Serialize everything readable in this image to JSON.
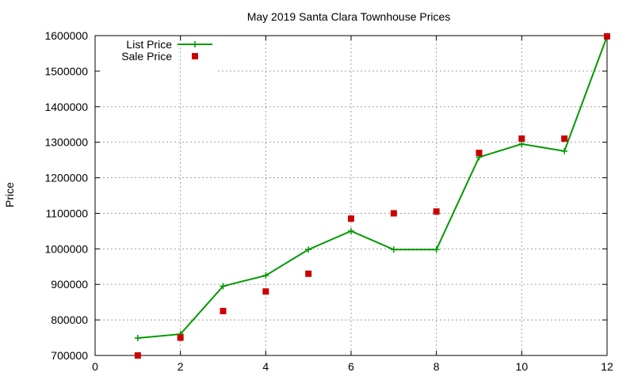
{
  "chart_data": {
    "type": "line",
    "title": "May 2019 Santa Clara Townhouse Prices",
    "xlabel": "",
    "ylabel": "Price",
    "xlim": [
      0,
      12
    ],
    "ylim": [
      700000,
      1600000
    ],
    "xticks": [
      0,
      2,
      4,
      6,
      8,
      10,
      12
    ],
    "yticks": [
      700000,
      800000,
      900000,
      1000000,
      1100000,
      1200000,
      1300000,
      1400000,
      1500000,
      1600000
    ],
    "grid": true,
    "legend_position": "top-left",
    "series": [
      {
        "name": "List Price",
        "style": "line-with-plus-markers",
        "color": "#009900",
        "points": [
          {
            "x": 1,
            "y": 749000
          },
          {
            "x": 2,
            "y": 760000
          },
          {
            "x": 3,
            "y": 895000
          },
          {
            "x": 4,
            "y": 925000
          },
          {
            "x": 5,
            "y": 998000
          },
          {
            "x": 6,
            "y": 1050000
          },
          {
            "x": 7,
            "y": 998000
          },
          {
            "x": 8,
            "y": 998000
          },
          {
            "x": 9,
            "y": 1258000
          },
          {
            "x": 10,
            "y": 1295000
          },
          {
            "x": 11,
            "y": 1275000
          },
          {
            "x": 12,
            "y": 1598000
          }
        ]
      },
      {
        "name": "Sale Price",
        "style": "square-markers",
        "color": "#cc0000",
        "points": [
          {
            "x": 1,
            "y": 700000
          },
          {
            "x": 2,
            "y": 750000
          },
          {
            "x": 3,
            "y": 825000
          },
          {
            "x": 4,
            "y": 880000
          },
          {
            "x": 5,
            "y": 930000
          },
          {
            "x": 6,
            "y": 1085000
          },
          {
            "x": 7,
            "y": 1100000
          },
          {
            "x": 8,
            "y": 1105000
          },
          {
            "x": 9,
            "y": 1270000
          },
          {
            "x": 10,
            "y": 1310000
          },
          {
            "x": 11,
            "y": 1310000
          },
          {
            "x": 12,
            "y": 1598000
          }
        ]
      }
    ]
  }
}
